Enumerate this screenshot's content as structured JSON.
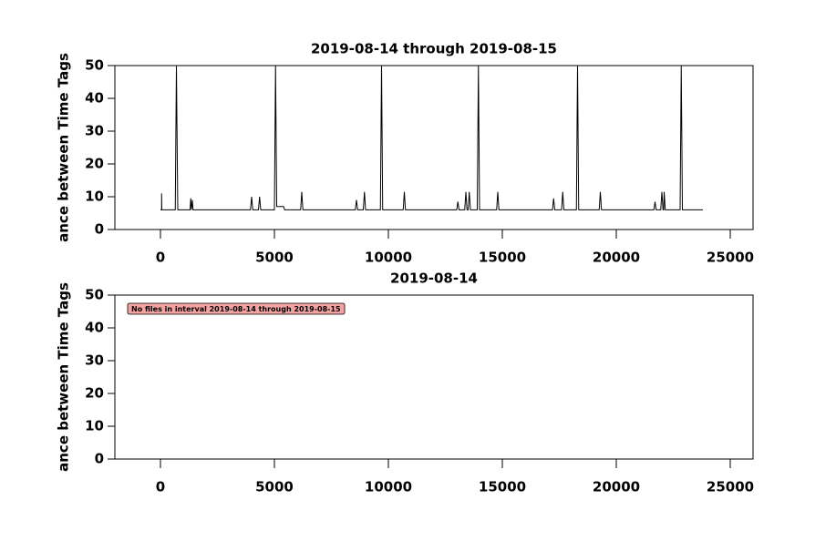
{
  "chart_data": [
    {
      "type": "line",
      "title": "2019-08-14 through 2019-08-15",
      "ylabel": "ance between Time Tags",
      "xlim": [
        -2000,
        26000
      ],
      "xticks": [
        0,
        5000,
        10000,
        15000,
        20000,
        25000
      ],
      "ylim": [
        0,
        50
      ],
      "yticks": [
        0,
        10,
        20,
        30,
        40,
        50
      ],
      "series": [
        {
          "color": "#000000",
          "x": [
            0,
            50,
            50,
            60,
            650,
            700,
            760,
            1300,
            1330,
            1360,
            1400,
            1430,
            3950,
            4000,
            4050,
            4300,
            4350,
            4400,
            5000,
            5050,
            5100,
            5400,
            5450,
            6150,
            6200,
            6250,
            8550,
            8600,
            8650,
            8900,
            8950,
            9000,
            9650,
            9700,
            9750,
            10650,
            10700,
            10750,
            13000,
            13050,
            13100,
            13350,
            13400,
            13450,
            13500,
            13550,
            13600,
            13900,
            13950,
            14000,
            14750,
            14800,
            14850,
            17200,
            17250,
            17300,
            17600,
            17650,
            17700,
            18250,
            18300,
            18350,
            19250,
            19300,
            19350,
            21650,
            21700,
            21750,
            21950,
            22000,
            22050,
            22080,
            22100,
            22150,
            22800,
            22850,
            22900,
            23800
          ],
          "values": [
            6,
            6,
            11,
            6,
            6,
            50,
            6,
            6,
            9.5,
            6,
            9,
            6,
            6,
            10,
            6,
            6,
            10,
            6,
            6,
            50,
            7,
            7,
            6,
            6,
            11.5,
            6,
            6,
            9,
            6,
            6,
            11.5,
            6,
            6,
            50,
            6,
            6,
            11.5,
            6,
            6,
            8.5,
            6,
            6,
            11.5,
            6,
            6,
            11.5,
            6,
            6,
            50,
            6,
            6,
            11.5,
            6,
            6,
            9.5,
            6,
            6,
            11.5,
            6,
            6,
            50,
            6,
            6,
            11.5,
            6,
            6,
            8.5,
            6,
            6,
            11.5,
            6,
            6,
            11.5,
            6,
            6,
            50,
            6,
            6
          ]
        }
      ]
    },
    {
      "type": "line",
      "title": "2019-08-14",
      "ylabel": "ance between Time Tags",
      "xlim": [
        -2000,
        26000
      ],
      "xticks": [
        0,
        5000,
        10000,
        15000,
        20000,
        25000
      ],
      "ylim": [
        0,
        50
      ],
      "yticks": [
        0,
        10,
        20,
        30,
        40,
        50
      ],
      "annotation": "No files in interval 2019-08-14 through 2019-08-15",
      "annotation_color": "#f4a3a3",
      "series": []
    }
  ]
}
